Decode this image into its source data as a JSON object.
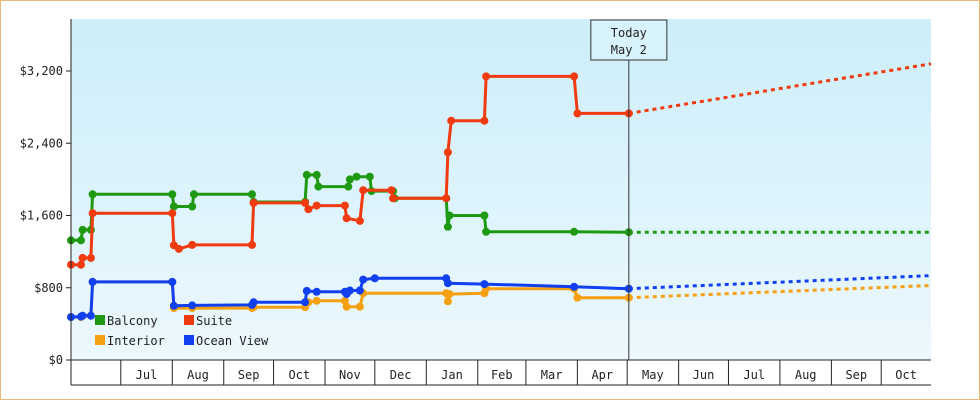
{
  "chart_data": {
    "type": "line",
    "title": "",
    "xlabel": "",
    "ylabel": "",
    "ylim": [
      0,
      3200
    ],
    "y_ticks": [
      {
        "value": 0,
        "label": "$0"
      },
      {
        "value": 800,
        "label": "$800"
      },
      {
        "value": 1600,
        "label": "$1,600"
      },
      {
        "value": 2400,
        "label": "$2,400"
      },
      {
        "value": 3200,
        "label": "$3,200"
      }
    ],
    "x_range": [
      "2023-06-01",
      "2024-10-31"
    ],
    "x_months": [
      {
        "start": "2023-07-01",
        "end": "2023-08-01",
        "label": "Jul"
      },
      {
        "start": "2023-08-01",
        "end": "2023-09-01",
        "label": "Aug"
      },
      {
        "start": "2023-09-01",
        "end": "2023-10-01",
        "label": "Sep"
      },
      {
        "start": "2023-10-01",
        "end": "2023-11-01",
        "label": "Oct"
      },
      {
        "start": "2023-11-01",
        "end": "2023-12-01",
        "label": "Nov"
      },
      {
        "start": "2023-12-01",
        "end": "2024-01-01",
        "label": "Dec"
      },
      {
        "start": "2024-01-01",
        "end": "2024-02-01",
        "label": "Jan"
      },
      {
        "start": "2024-02-01",
        "end": "2024-03-01",
        "label": "Feb"
      },
      {
        "start": "2024-03-01",
        "end": "2024-04-01",
        "label": "Mar"
      },
      {
        "start": "2024-04-01",
        "end": "2024-05-01",
        "label": "Apr"
      },
      {
        "start": "2024-05-01",
        "end": "2024-06-01",
        "label": "May"
      },
      {
        "start": "2024-06-01",
        "end": "2024-07-01",
        "label": "Jun"
      },
      {
        "start": "2024-07-01",
        "end": "2024-08-01",
        "label": "Jul"
      },
      {
        "start": "2024-08-01",
        "end": "2024-09-01",
        "label": "Aug"
      },
      {
        "start": "2024-09-01",
        "end": "2024-10-01",
        "label": "Sep"
      },
      {
        "start": "2024-10-01",
        "end": "2024-11-01",
        "label": "Oct"
      }
    ],
    "today": {
      "date": "2024-05-02",
      "label_line1": "Today",
      "label_line2": "May 2"
    },
    "grid": false,
    "legend_position": "bottom-left",
    "background_gradient": [
      "#cdeefa",
      "#ecf8fd"
    ],
    "series": [
      {
        "name": "Balcony",
        "color": "#1e9a12",
        "points": [
          [
            "2023-06-01",
            1325
          ],
          [
            "2023-06-07",
            1325
          ],
          [
            "2023-06-08",
            1440
          ],
          [
            "2023-06-13",
            1440
          ],
          [
            "2023-06-14",
            1835
          ],
          [
            "2023-08-01",
            1835
          ],
          [
            "2023-08-02",
            1700
          ],
          [
            "2023-08-13",
            1700
          ],
          [
            "2023-08-14",
            1835
          ],
          [
            "2023-09-18",
            1835
          ],
          [
            "2023-09-19",
            1750
          ],
          [
            "2023-10-20",
            1750
          ],
          [
            "2023-10-21",
            2050
          ],
          [
            "2023-10-27",
            2050
          ],
          [
            "2023-10-28",
            1920
          ],
          [
            "2023-11-15",
            1920
          ],
          [
            "2023-11-16",
            2000
          ],
          [
            "2023-11-20",
            2030
          ],
          [
            "2023-11-28",
            2030
          ],
          [
            "2023-11-29",
            1870
          ],
          [
            "2023-12-12",
            1870
          ],
          [
            "2023-12-13",
            1790
          ],
          [
            "2024-01-13",
            1790
          ],
          [
            "2024-01-14",
            1475
          ],
          [
            "2024-01-15",
            1600
          ],
          [
            "2024-02-05",
            1600
          ],
          [
            "2024-02-06",
            1420
          ],
          [
            "2024-03-30",
            1420
          ],
          [
            "2024-05-02",
            1415
          ]
        ],
        "forecast": [
          [
            "2024-05-02",
            1415
          ],
          [
            "2024-10-31",
            1415
          ]
        ]
      },
      {
        "name": "Suite",
        "color": "#f03a10",
        "points": [
          [
            "2023-06-01",
            1055
          ],
          [
            "2023-06-07",
            1055
          ],
          [
            "2023-06-08",
            1130
          ],
          [
            "2023-06-13",
            1130
          ],
          [
            "2023-06-14",
            1625
          ],
          [
            "2023-08-01",
            1625
          ],
          [
            "2023-08-02",
            1270
          ],
          [
            "2023-08-05",
            1230
          ],
          [
            "2023-08-13",
            1275
          ],
          [
            "2023-09-18",
            1275
          ],
          [
            "2023-09-19",
            1740
          ],
          [
            "2023-10-20",
            1740
          ],
          [
            "2023-10-22",
            1670
          ],
          [
            "2023-10-27",
            1710
          ],
          [
            "2023-11-13",
            1710
          ],
          [
            "2023-11-14",
            1570
          ],
          [
            "2023-11-22",
            1540
          ],
          [
            "2023-11-24",
            1880
          ],
          [
            "2023-12-11",
            1880
          ],
          [
            "2023-12-12",
            1790
          ],
          [
            "2024-01-13",
            1790
          ],
          [
            "2024-01-14",
            2300
          ],
          [
            "2024-01-16",
            2650
          ],
          [
            "2024-02-05",
            2650
          ],
          [
            "2024-02-06",
            3140
          ],
          [
            "2024-03-30",
            3140
          ],
          [
            "2024-04-01",
            2730
          ],
          [
            "2024-05-02",
            2730
          ]
        ],
        "forecast": [
          [
            "2024-05-02",
            2730
          ],
          [
            "2024-10-31",
            3280
          ]
        ]
      },
      {
        "name": "Interior",
        "color": "#f5a010",
        "points": [
          [
            "2023-06-01",
            475
          ],
          [
            "2023-06-07",
            475
          ],
          [
            "2023-06-08",
            490
          ],
          [
            "2023-06-13",
            490
          ],
          [
            "2023-06-14",
            865
          ],
          [
            "2023-08-01",
            865
          ],
          [
            "2023-08-02",
            575
          ],
          [
            "2023-08-13",
            575
          ],
          [
            "2023-09-18",
            575
          ],
          [
            "2023-09-19",
            585
          ],
          [
            "2023-10-20",
            585
          ],
          [
            "2023-10-22",
            640
          ],
          [
            "2023-10-27",
            655
          ],
          [
            "2023-11-13",
            655
          ],
          [
            "2023-11-14",
            590
          ],
          [
            "2023-11-22",
            590
          ],
          [
            "2023-11-24",
            740
          ],
          [
            "2024-01-13",
            740
          ],
          [
            "2024-01-14",
            650
          ],
          [
            "2024-01-15",
            730
          ],
          [
            "2024-02-05",
            740
          ],
          [
            "2024-02-06",
            790
          ],
          [
            "2024-03-30",
            790
          ],
          [
            "2024-04-01",
            690
          ],
          [
            "2024-05-02",
            690
          ]
        ],
        "forecast": [
          [
            "2024-05-02",
            690
          ],
          [
            "2024-10-31",
            825
          ]
        ]
      },
      {
        "name": "Ocean View",
        "color": "#1040f0",
        "points": [
          [
            "2023-06-01",
            475
          ],
          [
            "2023-06-07",
            480
          ],
          [
            "2023-06-08",
            490
          ],
          [
            "2023-06-13",
            490
          ],
          [
            "2023-06-14",
            865
          ],
          [
            "2023-08-01",
            865
          ],
          [
            "2023-08-02",
            600
          ],
          [
            "2023-08-13",
            605
          ],
          [
            "2023-09-18",
            610
          ],
          [
            "2023-09-19",
            640
          ],
          [
            "2023-10-20",
            640
          ],
          [
            "2023-10-21",
            765
          ],
          [
            "2023-10-27",
            755
          ],
          [
            "2023-11-13",
            755
          ],
          [
            "2023-11-14",
            730
          ],
          [
            "2023-11-16",
            770
          ],
          [
            "2023-11-22",
            770
          ],
          [
            "2023-11-24",
            890
          ],
          [
            "2023-12-01",
            905
          ],
          [
            "2024-01-13",
            905
          ],
          [
            "2024-01-14",
            850
          ],
          [
            "2024-02-05",
            840
          ],
          [
            "2024-03-30",
            810
          ],
          [
            "2024-05-02",
            790
          ]
        ],
        "forecast": [
          [
            "2024-05-02",
            790
          ],
          [
            "2024-10-31",
            935
          ]
        ]
      }
    ]
  }
}
